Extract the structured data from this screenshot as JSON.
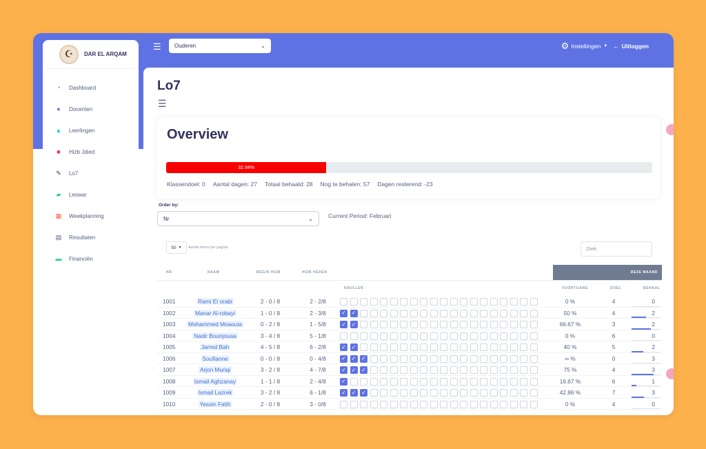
{
  "sidebar": {
    "brand": "DAR EL ARQAM",
    "items": [
      {
        "label": "Dashboard",
        "icon": "pie-chart-icon",
        "color": "#5E72E4"
      },
      {
        "label": "Docenten",
        "icon": "user-icon",
        "color": "#5E72E4"
      },
      {
        "label": "Leerlingen",
        "icon": "graduation-cap-icon",
        "color": "#11cdef"
      },
      {
        "label": "Hizb Jdied",
        "icon": "book-icon",
        "color": "#f5365c"
      },
      {
        "label": "Lo7",
        "icon": "pencil-icon",
        "color": "#32325d"
      },
      {
        "label": "Leswar",
        "icon": "folder-icon",
        "color": "#2dce89"
      },
      {
        "label": "Weekplanning",
        "icon": "calendar-icon",
        "color": "#fb6340"
      },
      {
        "label": "Resultaten",
        "icon": "document-icon",
        "color": "#525f7f"
      },
      {
        "label": "Financiën",
        "icon": "money-icon",
        "color": "#2dce89"
      }
    ]
  },
  "topbar": {
    "role_select": "Ouderen",
    "settings": "Instellingen",
    "logout": "Uitloggen"
  },
  "page": {
    "title": "Lo7"
  },
  "overview": {
    "title": "Overview",
    "progress_label": "32.94%",
    "progress_value": 32.94,
    "stats": [
      "Klassendoel: 0",
      "Aantal dagen: 27",
      "Totaal behaald: 28",
      "Nog te behalen: 57",
      "Dagen resterend: -23"
    ]
  },
  "filters": {
    "order_by_label": "Order by:",
    "order_by_value": "Nr",
    "current_period": "Current Period: Februari",
    "per_page_value": "50",
    "per_page_label": "Aantal items per pagina",
    "search_placeholder": "Zoek"
  },
  "table": {
    "group_header": "DEZE MAAND",
    "headers": {
      "nr": "NR",
      "naam": "NAAM",
      "begin": "BEGIN HIZB",
      "heden": "HIZB HEDEN",
      "krullen": "KRULLEN",
      "voortgang": "VOORTGANG",
      "doel": "DOEL",
      "behaal": "BEHAAL"
    },
    "rows": [
      {
        "nr": "1001",
        "naam": "Rami El orabi",
        "begin": "2 - 0 / 8",
        "heden": "2 - 2/8",
        "checked": 0,
        "voortgang": "0 %",
        "doel": "4",
        "behaal": "0",
        "fill": 0
      },
      {
        "nr": "1002",
        "naam": "Manar Al-robayi",
        "begin": "1 - 0 / 8",
        "heden": "2 - 3/8",
        "checked": 2,
        "voortgang": "50 %",
        "doel": "4",
        "behaal": "2",
        "fill": 0.5
      },
      {
        "nr": "1003",
        "naam": "Mohammed Moaouia",
        "begin": "0 - 2 / 8",
        "heden": "1 - 5/8",
        "checked": 2,
        "voortgang": "66.67 %",
        "doel": "3",
        "behaal": "2",
        "fill": 0.6667
      },
      {
        "nr": "1004",
        "naam": "Nadir Bounjouaa",
        "begin": "3 - 4 / 8",
        "heden": "5 - 1/8",
        "checked": 0,
        "voortgang": "0 %",
        "doel": "6",
        "behaal": "0",
        "fill": 0
      },
      {
        "nr": "1005",
        "naam": "Jarred Bah",
        "begin": "4 - 5 / 8",
        "heden": "6 - 2/8",
        "checked": 2,
        "voortgang": "40 %",
        "doel": "5",
        "behaal": "2",
        "fill": 0.4
      },
      {
        "nr": "1006",
        "naam": "Soufianne",
        "begin": "0 - 0 / 8",
        "heden": "0 - 4/8",
        "checked": 3,
        "voortgang": "∞ %",
        "doel": "0",
        "behaal": "3",
        "fill": 0
      },
      {
        "nr": "1007",
        "naam": "Arjon Muriqi",
        "begin": "3 - 2 / 8",
        "heden": "4 - 7/8",
        "checked": 3,
        "voortgang": "75 %",
        "doel": "4",
        "behaal": "3",
        "fill": 0.75
      },
      {
        "nr": "1008",
        "naam": "Ismail Aghzanay",
        "begin": "1 - 1 / 8",
        "heden": "2 - 4/8",
        "checked": 1,
        "voortgang": "16.67 %",
        "doel": "6",
        "behaal": "1",
        "fill": 0.1667
      },
      {
        "nr": "1009",
        "naam": "Ismail Lazrek",
        "begin": "3 - 2 / 8",
        "heden": "6 - 1/8",
        "checked": 3,
        "voortgang": "42.86 %",
        "doel": "7",
        "behaal": "3",
        "fill": 0.4286
      },
      {
        "nr": "1010",
        "naam": "Yessin Fatih",
        "begin": "2 - 0 / 8",
        "heden": "3 - 0/8",
        "checked": 0,
        "voortgang": "0 %",
        "doel": "4",
        "behaal": "0",
        "fill": 0
      }
    ]
  }
}
